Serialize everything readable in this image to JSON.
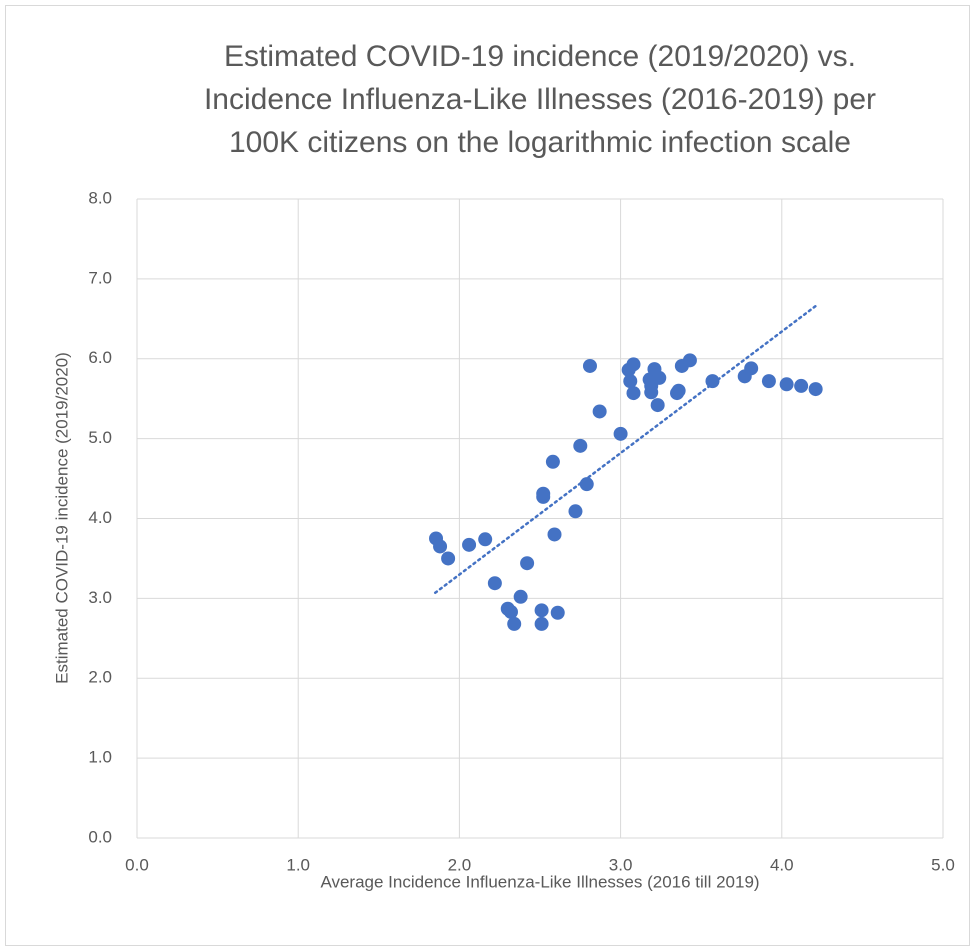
{
  "chart_data": {
    "type": "scatter",
    "title": [
      "Estimated COVID-19 incidence (2019/2020) vs.",
      "Incidence Influenza-Like Illnesses (2016-2019) per",
      "100K citizens on the logarithmic infection scale"
    ],
    "x_label": "Average Incidence Influenza-Like Illnesses (2016 till 2019)",
    "y_label": "Estimated COVID-19 incidence (2019/2020)",
    "xlim": [
      0,
      5
    ],
    "ylim": [
      0,
      8
    ],
    "xticks": [
      {
        "value": 0,
        "label": "0.0"
      },
      {
        "value": 1,
        "label": "1.0"
      },
      {
        "value": 2,
        "label": "2.0"
      },
      {
        "value": 3,
        "label": "3.0"
      },
      {
        "value": 4,
        "label": "4.0"
      },
      {
        "value": 5,
        "label": "5.0"
      }
    ],
    "yticks": [
      {
        "value": 0,
        "label": "0.0"
      },
      {
        "value": 1,
        "label": "1.0"
      },
      {
        "value": 2,
        "label": "2.0"
      },
      {
        "value": 3,
        "label": "3.0"
      },
      {
        "value": 4,
        "label": "4.0"
      },
      {
        "value": 5,
        "label": "5.0"
      },
      {
        "value": 6,
        "label": "6.0"
      },
      {
        "value": 7,
        "label": "7.0"
      },
      {
        "value": 8,
        "label": "8.0"
      }
    ],
    "grid": true,
    "color": "#4472c4",
    "x": [
      1.855,
      1.88,
      1.93,
      2.06,
      2.16,
      2.22,
      2.3,
      2.32,
      2.34,
      2.38,
      2.42,
      2.51,
      2.51,
      2.52,
      2.52,
      2.58,
      2.59,
      2.61,
      2.72,
      2.75,
      2.79,
      2.81,
      2.87,
      3.0,
      3.05,
      3.06,
      3.08,
      3.08,
      3.18,
      3.19,
      3.19,
      3.21,
      3.23,
      3.24,
      3.35,
      3.36,
      3.38,
      3.43,
      3.57,
      3.77,
      3.81,
      3.92,
      4.03,
      4.12,
      4.21
    ],
    "values": [
      3.75,
      3.65,
      3.5,
      3.67,
      3.74,
      3.19,
      2.87,
      2.83,
      2.68,
      3.02,
      3.44,
      2.85,
      2.68,
      4.31,
      4.27,
      4.71,
      3.8,
      2.82,
      4.09,
      4.91,
      4.43,
      5.91,
      5.34,
      5.06,
      5.86,
      5.72,
      5.57,
      5.93,
      5.74,
      5.66,
      5.58,
      5.87,
      5.42,
      5.76,
      5.57,
      5.6,
      5.91,
      5.98,
      5.72,
      5.78,
      5.88,
      5.72,
      5.68,
      5.66,
      5.62
    ],
    "trendline": {
      "x": [
        1.85,
        4.21
      ],
      "values": [
        3.07,
        6.66
      ]
    }
  }
}
